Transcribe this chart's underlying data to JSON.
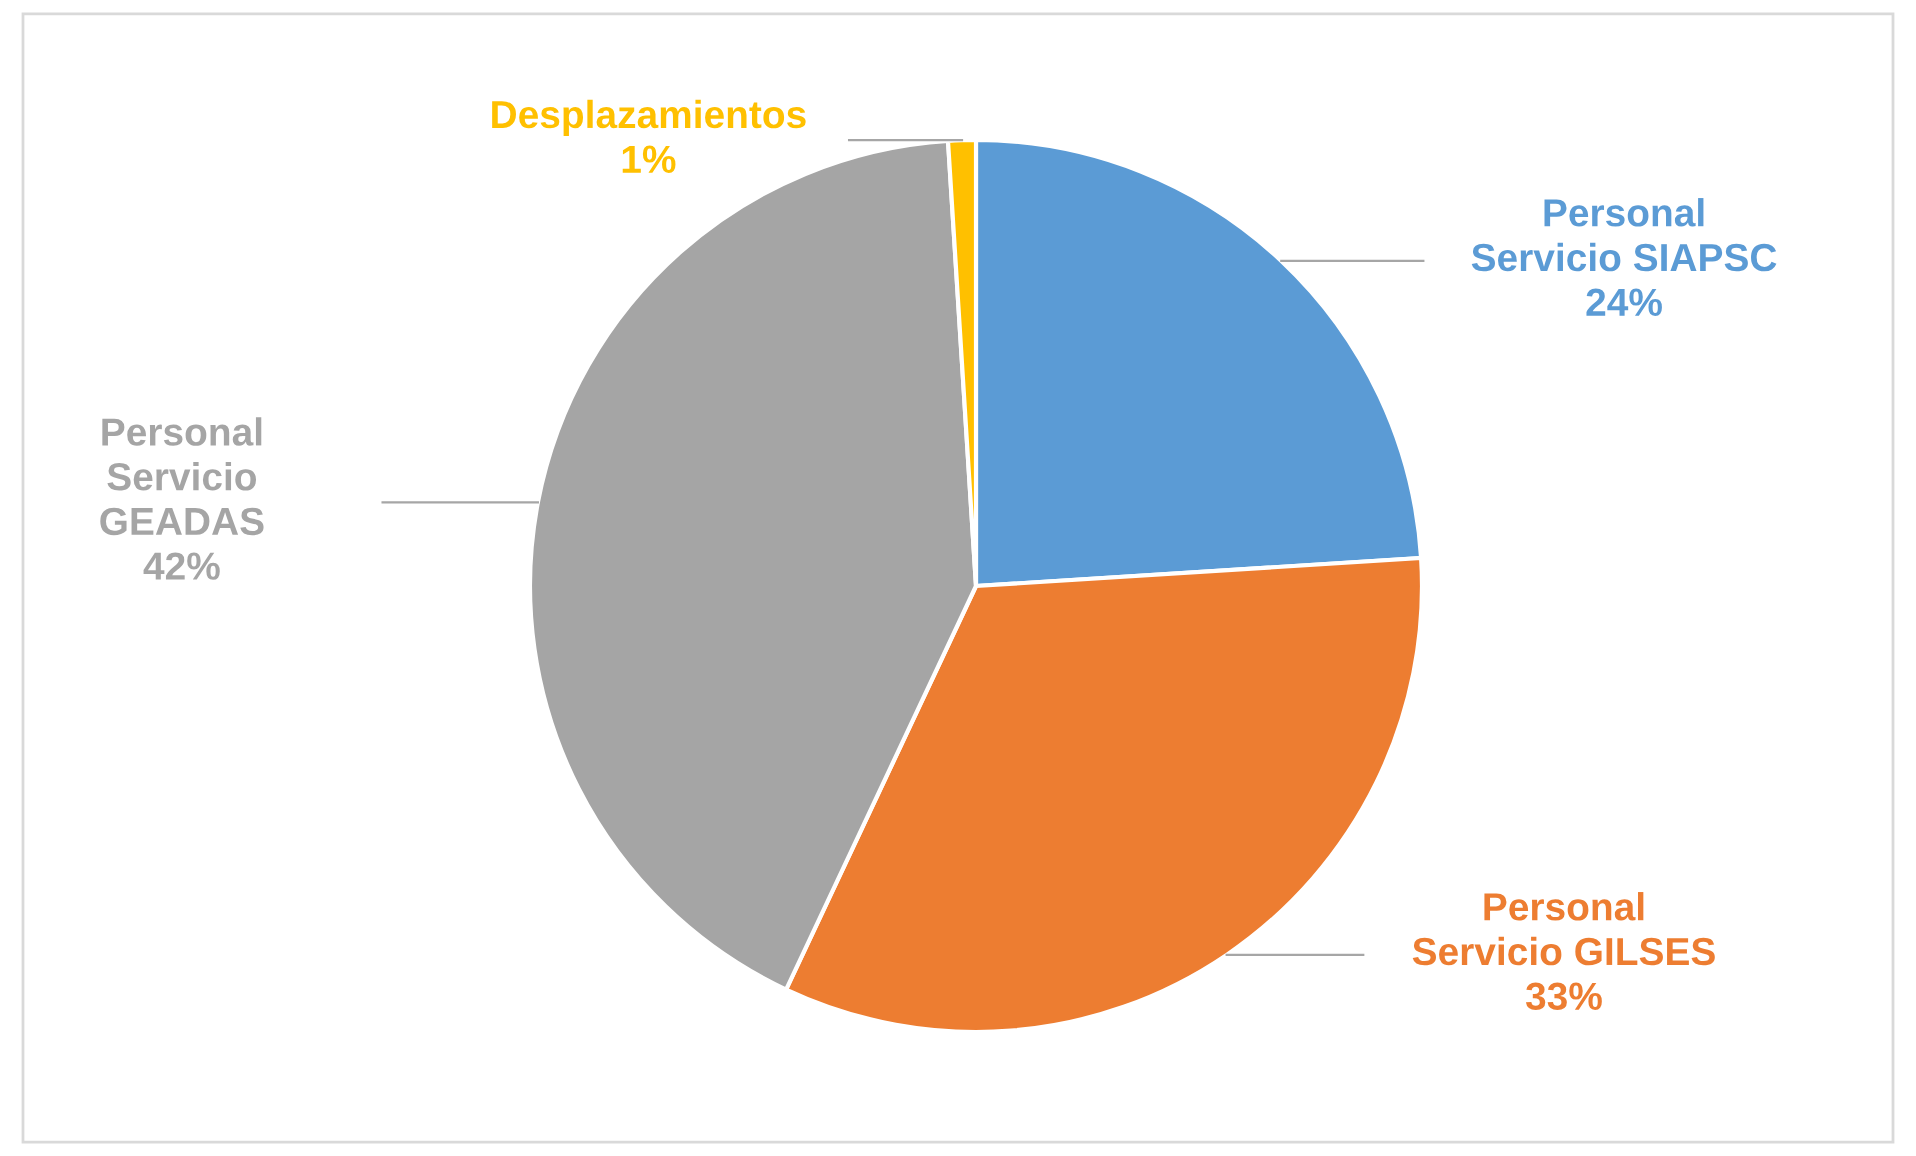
{
  "chart_data": {
    "type": "pie",
    "categories": [
      "Personal\nServicio SIAPSC",
      "Personal\nServicio GILSES",
      "Personal\nServicio\nGEADAS",
      "Desplazamientos"
    ],
    "values": [
      24,
      33,
      42,
      1
    ],
    "colors": [
      "#5b9bd5",
      "#ed7d31",
      "#a5a5a5",
      "#ffc000"
    ],
    "value_labels": [
      "24%",
      "33%",
      "42%",
      "1%"
    ],
    "legend": false
  }
}
